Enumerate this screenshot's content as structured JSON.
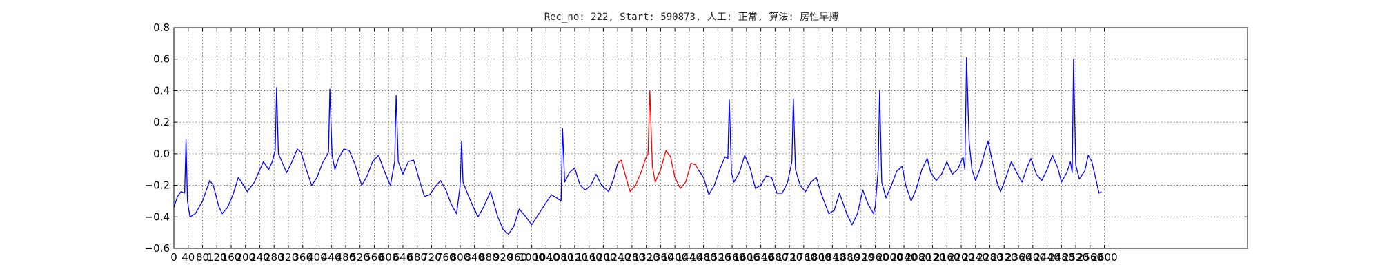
{
  "chart_data": {
    "type": "line",
    "title": "Rec_no: 222, Start: 590873, 人工: 正常, 算法: 房性早搏",
    "xlabel": "",
    "ylabel": "",
    "xlim": [
      0,
      3000
    ],
    "ylim": [
      -0.6,
      0.8
    ],
    "grid": true,
    "x_ticks": [
      0,
      40,
      80,
      120,
      160,
      200,
      240,
      280,
      320,
      360,
      400,
      440,
      480,
      520,
      560,
      600,
      640,
      680,
      720,
      760,
      800,
      840,
      880,
      920,
      960,
      1000,
      1040,
      1080,
      1120,
      1160,
      1200,
      1240,
      1280,
      1320,
      1360,
      1400,
      1440,
      1480,
      1520,
      1560,
      1600,
      1640,
      1680,
      1720,
      1760,
      1800,
      1840,
      1880,
      1920,
      1960,
      2000,
      2040,
      2080,
      2120,
      2160,
      2200,
      2240,
      2280,
      2320,
      2360,
      2400,
      2440,
      2480,
      2520,
      2560,
      2600
    ],
    "y_ticks": [
      -0.6,
      -0.4,
      -0.2,
      0.0,
      0.2,
      0.4,
      0.6,
      0.8
    ],
    "y_tick_labels": [
      "−0.6",
      "−0.4",
      "−0.2",
      "0.0",
      "0.2",
      "0.4",
      "0.6",
      "0.8"
    ],
    "series": [
      {
        "color": "#0000ff",
        "points": [
          [
            0,
            -0.34
          ],
          [
            10,
            -0.27
          ],
          [
            20,
            -0.24
          ],
          [
            30,
            -0.25
          ],
          [
            34,
            0.09
          ],
          [
            38,
            -0.3
          ],
          [
            45,
            -0.4
          ],
          [
            60,
            -0.38
          ],
          [
            80,
            -0.3
          ],
          [
            100,
            -0.17
          ],
          [
            110,
            -0.2
          ],
          [
            125,
            -0.33
          ],
          [
            135,
            -0.38
          ],
          [
            150,
            -0.34
          ],
          [
            165,
            -0.26
          ],
          [
            180,
            -0.15
          ],
          [
            195,
            -0.2
          ],
          [
            205,
            -0.24
          ],
          [
            225,
            -0.18
          ],
          [
            250,
            -0.05
          ],
          [
            265,
            -0.1
          ],
          [
            275,
            -0.05
          ],
          [
            283,
            0.02
          ],
          [
            287,
            0.42
          ],
          [
            292,
            0.0
          ],
          [
            300,
            -0.04
          ],
          [
            315,
            -0.12
          ],
          [
            330,
            -0.05
          ],
          [
            345,
            0.03
          ],
          [
            355,
            0.01
          ],
          [
            370,
            -0.1
          ],
          [
            385,
            -0.2
          ],
          [
            400,
            -0.15
          ],
          [
            415,
            -0.06
          ],
          [
            425,
            -0.02
          ],
          [
            432,
            0.01
          ],
          [
            436,
            0.41
          ],
          [
            442,
            -0.01
          ],
          [
            450,
            -0.1
          ],
          [
            460,
            -0.03
          ],
          [
            475,
            0.03
          ],
          [
            490,
            0.02
          ],
          [
            505,
            -0.06
          ],
          [
            525,
            -0.2
          ],
          [
            540,
            -0.14
          ],
          [
            555,
            -0.05
          ],
          [
            572,
            -0.01
          ],
          [
            590,
            -0.12
          ],
          [
            605,
            -0.2
          ],
          [
            617,
            -0.05
          ],
          [
            621,
            0.37
          ],
          [
            627,
            -0.05
          ],
          [
            640,
            -0.13
          ],
          [
            655,
            -0.05
          ],
          [
            670,
            -0.04
          ],
          [
            685,
            -0.16
          ],
          [
            700,
            -0.27
          ],
          [
            715,
            -0.26
          ],
          [
            730,
            -0.21
          ],
          [
            745,
            -0.17
          ],
          [
            760,
            -0.23
          ],
          [
            775,
            -0.32
          ],
          [
            790,
            -0.38
          ],
          [
            800,
            -0.2
          ],
          [
            804,
            0.08
          ],
          [
            808,
            -0.18
          ],
          [
            820,
            -0.25
          ],
          [
            835,
            -0.33
          ],
          [
            850,
            -0.4
          ],
          [
            865,
            -0.34
          ],
          [
            885,
            -0.24
          ],
          [
            905,
            -0.4
          ],
          [
            920,
            -0.48
          ],
          [
            935,
            -0.51
          ],
          [
            950,
            -0.46
          ],
          [
            965,
            -0.35
          ],
          [
            980,
            -0.39
          ],
          [
            1000,
            -0.45
          ],
          [
            1020,
            -0.38
          ],
          [
            1040,
            -0.31
          ],
          [
            1055,
            -0.26
          ],
          [
            1070,
            -0.28
          ],
          [
            1082,
            -0.3
          ],
          [
            1086,
            0.16
          ],
          [
            1092,
            -0.18
          ],
          [
            1105,
            -0.12
          ],
          [
            1120,
            -0.09
          ],
          [
            1135,
            -0.2
          ],
          [
            1150,
            -0.23
          ],
          [
            1165,
            -0.2
          ],
          [
            1180,
            -0.13
          ],
          [
            1195,
            -0.2
          ],
          [
            1215,
            -0.24
          ],
          [
            1230,
            -0.15
          ],
          [
            1240,
            -0.06
          ]
        ]
      },
      {
        "color": "#ff0000",
        "points": [
          [
            1240,
            -0.06
          ],
          [
            1250,
            -0.04
          ],
          [
            1262,
            -0.14
          ],
          [
            1275,
            -0.24
          ],
          [
            1290,
            -0.2
          ],
          [
            1305,
            -0.12
          ],
          [
            1318,
            -0.03
          ],
          [
            1325,
            0.0
          ],
          [
            1330,
            0.4
          ],
          [
            1337,
            -0.08
          ],
          [
            1345,
            -0.18
          ],
          [
            1360,
            -0.1
          ],
          [
            1375,
            0.02
          ],
          [
            1388,
            -0.02
          ],
          [
            1400,
            -0.15
          ],
          [
            1415,
            -0.22
          ],
          [
            1430,
            -0.18
          ],
          [
            1445,
            -0.06
          ],
          [
            1458,
            -0.07
          ],
          [
            1465,
            -0.1
          ]
        ]
      },
      {
        "color": "#0000ff",
        "points": [
          [
            1465,
            -0.1
          ],
          [
            1480,
            -0.15
          ],
          [
            1495,
            -0.26
          ],
          [
            1510,
            -0.2
          ],
          [
            1525,
            -0.1
          ],
          [
            1540,
            -0.02
          ],
          [
            1548,
            -0.03
          ],
          [
            1552,
            0.34
          ],
          [
            1558,
            -0.12
          ],
          [
            1565,
            -0.18
          ],
          [
            1580,
            -0.12
          ],
          [
            1595,
            -0.01
          ],
          [
            1610,
            -0.09
          ],
          [
            1625,
            -0.22
          ],
          [
            1640,
            -0.2
          ],
          [
            1655,
            -0.14
          ],
          [
            1670,
            -0.15
          ],
          [
            1685,
            -0.25
          ],
          [
            1700,
            -0.25
          ],
          [
            1715,
            -0.18
          ],
          [
            1727,
            -0.05
          ],
          [
            1731,
            0.35
          ],
          [
            1737,
            -0.1
          ],
          [
            1750,
            -0.2
          ],
          [
            1765,
            -0.24
          ],
          [
            1780,
            -0.18
          ],
          [
            1795,
            -0.15
          ],
          [
            1810,
            -0.26
          ],
          [
            1830,
            -0.38
          ],
          [
            1845,
            -0.36
          ],
          [
            1860,
            -0.25
          ],
          [
            1880,
            -0.38
          ],
          [
            1895,
            -0.45
          ],
          [
            1910,
            -0.38
          ],
          [
            1925,
            -0.23
          ],
          [
            1940,
            -0.32
          ],
          [
            1955,
            -0.38
          ],
          [
            1960,
            -0.33
          ],
          [
            1968,
            -0.1
          ],
          [
            1972,
            0.4
          ],
          [
            1978,
            -0.18
          ],
          [
            1990,
            -0.28
          ],
          [
            2005,
            -0.2
          ],
          [
            2020,
            -0.11
          ],
          [
            2035,
            -0.08
          ],
          [
            2045,
            -0.2
          ],
          [
            2060,
            -0.3
          ],
          [
            2075,
            -0.22
          ],
          [
            2090,
            -0.1
          ],
          [
            2105,
            -0.03
          ],
          [
            2115,
            -0.12
          ],
          [
            2130,
            -0.17
          ],
          [
            2145,
            -0.13
          ],
          [
            2160,
            -0.05
          ],
          [
            2175,
            -0.13
          ],
          [
            2190,
            -0.1
          ],
          [
            2205,
            -0.02
          ],
          [
            2210,
            -0.1
          ],
          [
            2215,
            0.61
          ],
          [
            2222,
            0.08
          ],
          [
            2230,
            -0.1
          ],
          [
            2240,
            -0.17
          ],
          [
            2255,
            -0.08
          ],
          [
            2268,
            0.03
          ],
          [
            2275,
            0.08
          ],
          [
            2285,
            -0.03
          ],
          [
            2300,
            -0.18
          ],
          [
            2310,
            -0.24
          ],
          [
            2325,
            -0.15
          ],
          [
            2340,
            -0.05
          ],
          [
            2355,
            -0.12
          ],
          [
            2370,
            -0.18
          ],
          [
            2385,
            -0.08
          ],
          [
            2395,
            -0.03
          ],
          [
            2410,
            -0.13
          ],
          [
            2425,
            -0.17
          ],
          [
            2440,
            -0.1
          ],
          [
            2455,
            -0.01
          ],
          [
            2470,
            -0.09
          ],
          [
            2480,
            -0.18
          ],
          [
            2495,
            -0.12
          ],
          [
            2505,
            -0.05
          ],
          [
            2510,
            -0.12
          ],
          [
            2514,
            0.6
          ],
          [
            2520,
            -0.07
          ],
          [
            2530,
            -0.16
          ],
          [
            2545,
            -0.11
          ],
          [
            2555,
            -0.01
          ],
          [
            2565,
            -0.05
          ],
          [
            2575,
            -0.15
          ],
          [
            2585,
            -0.25
          ],
          [
            2592,
            -0.24
          ]
        ]
      }
    ]
  }
}
